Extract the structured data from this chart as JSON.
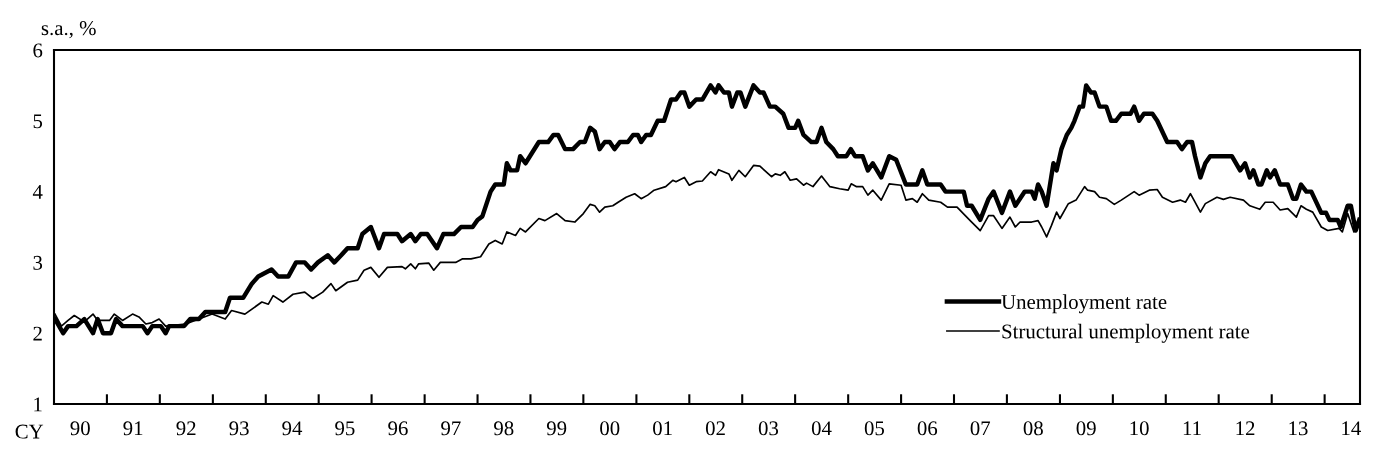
{
  "chart_data": {
    "type": "line",
    "ylabel": "s.a., %",
    "xlabel": "CY",
    "xlim": [
      "1990-01-01",
      "2014-09-02"
    ],
    "ylim": [
      1,
      6
    ],
    "yticks": [
      1,
      2,
      3,
      4,
      5,
      6
    ],
    "xticks": [
      {
        "value": "1990-07-01",
        "label": "90"
      },
      {
        "value": "1991-01-01",
        "label": null
      },
      {
        "value": "1991-07-01",
        "label": "91"
      },
      {
        "value": "1992-01-01",
        "label": null
      },
      {
        "value": "1992-07-01",
        "label": "92"
      },
      {
        "value": "1993-01-01",
        "label": null
      },
      {
        "value": "1993-07-01",
        "label": "93"
      },
      {
        "value": "1994-01-01",
        "label": null
      },
      {
        "value": "1994-07-01",
        "label": "94"
      },
      {
        "value": "1995-01-01",
        "label": null
      },
      {
        "value": "1995-07-01",
        "label": "95"
      },
      {
        "value": "1996-01-01",
        "label": null
      },
      {
        "value": "1996-07-01",
        "label": "96"
      },
      {
        "value": "1997-01-01",
        "label": null
      },
      {
        "value": "1997-07-01",
        "label": "97"
      },
      {
        "value": "1998-01-01",
        "label": null
      },
      {
        "value": "1998-07-01",
        "label": "98"
      },
      {
        "value": "1999-01-01",
        "label": null
      },
      {
        "value": "1999-07-01",
        "label": "99"
      },
      {
        "value": "2000-01-01",
        "label": null
      },
      {
        "value": "2000-07-01",
        "label": "00"
      },
      {
        "value": "2001-01-01",
        "label": null
      },
      {
        "value": "2001-07-01",
        "label": "01"
      },
      {
        "value": "2002-01-01",
        "label": null
      },
      {
        "value": "2002-07-01",
        "label": "02"
      },
      {
        "value": "2003-01-01",
        "label": null
      },
      {
        "value": "2003-07-01",
        "label": "03"
      },
      {
        "value": "2004-01-01",
        "label": null
      },
      {
        "value": "2004-07-01",
        "label": "04"
      },
      {
        "value": "2005-01-01",
        "label": null
      },
      {
        "value": "2005-07-01",
        "label": "05"
      },
      {
        "value": "2006-01-01",
        "label": null
      },
      {
        "value": "2006-07-01",
        "label": "06"
      },
      {
        "value": "2007-01-01",
        "label": null
      },
      {
        "value": "2007-07-01",
        "label": "07"
      },
      {
        "value": "2008-01-01",
        "label": null
      },
      {
        "value": "2008-07-01",
        "label": "08"
      },
      {
        "value": "2009-01-01",
        "label": null
      },
      {
        "value": "2009-07-01",
        "label": "09"
      },
      {
        "value": "2010-01-01",
        "label": null
      },
      {
        "value": "2010-07-01",
        "label": "10"
      },
      {
        "value": "2011-01-01",
        "label": null
      },
      {
        "value": "2011-07-01",
        "label": "11"
      },
      {
        "value": "2012-01-01",
        "label": null
      },
      {
        "value": "2012-07-01",
        "label": "12"
      },
      {
        "value": "2013-01-01",
        "label": null
      },
      {
        "value": "2013-07-01",
        "label": "13"
      },
      {
        "value": "2014-01-01",
        "label": null
      },
      {
        "value": "2014-07-01",
        "label": "14"
      }
    ],
    "grid": false,
    "legend": "lower right",
    "marker": "none",
    "line_style": "solid",
    "series": [
      {
        "name": "Unemployment rate",
        "color": "#000000",
        "x": [
          "1990-01-08",
          "1990-03-05",
          "1990-04-08",
          "1990-06-05",
          "1990-07-29",
          "1990-09-27",
          "1990-10-29",
          "1990-12-05",
          "1991-01-29",
          "1991-03-05",
          "1991-04-19",
          "1991-09-05",
          "1991-10-08",
          "1991-11-10",
          "1992-01-08",
          "1992-02-10",
          "1992-03-05",
          "1992-06-16",
          "1992-07-29",
          "1992-09-27",
          "1992-11-10",
          "1993-03-27",
          "1993-04-29",
          "1993-07-29",
          "1993-09-27",
          "1993-11-10",
          "1994-02-10",
          "1994-03-27",
          "1994-06-05",
          "1994-07-29",
          "1994-09-27",
          "1994-11-10",
          "1994-12-27",
          "1995-03-05",
          "1995-04-19",
          "1995-06-05",
          "1995-07-19",
          "1995-09-27",
          "1995-10-29",
          "1995-12-27",
          "1996-02-21",
          "1996-03-27",
          "1996-06-27",
          "1996-07-29",
          "1996-09-27",
          "1996-10-29",
          "1996-12-05",
          "1997-01-19",
          "1997-03-27",
          "1997-05-10",
          "1997-07-22",
          "1997-09-09",
          "1997-11-28",
          "1998-01-01",
          "1998-02-03",
          "1998-04-01",
          "1998-05-03",
          "1998-07-01",
          "1998-07-22",
          "1998-08-17",
          "1998-10-01",
          "1998-10-22",
          "1998-11-28",
          "1999-02-28",
          "1999-05-03",
          "1999-06-09",
          "1999-07-11",
          "1999-08-28",
          "1999-10-22",
          "1999-12-09",
          "2000-01-11",
          "2000-02-17",
          "2000-03-20",
          "2000-04-22",
          "2000-05-28",
          "2000-07-01",
          "2000-08-03",
          "2000-09-09",
          "2000-11-03",
          "2000-12-09",
          "2001-01-11",
          "2001-02-03",
          "2001-03-09",
          "2001-04-11",
          "2001-05-28",
          "2001-07-11",
          "2001-08-28",
          "2001-10-01",
          "2001-11-03",
          "2001-11-28",
          "2002-01-01",
          "2002-02-17",
          "2002-04-01",
          "2002-05-28",
          "2002-07-01",
          "2002-07-22",
          "2002-08-28",
          "2002-10-01",
          "2002-10-22",
          "2002-11-28",
          "2002-12-20",
          "2003-01-22",
          "2003-03-20",
          "2003-05-03",
          "2003-05-28",
          "2003-07-11",
          "2003-08-17",
          "2003-10-11",
          "2003-11-17",
          "2004-01-01",
          "2004-01-22",
          "2004-02-28",
          "2004-04-22",
          "2004-05-28",
          "2004-07-01",
          "2004-08-03",
          "2004-09-20",
          "2004-10-22",
          "2004-12-20",
          "2005-01-19",
          "2005-02-17",
          "2005-04-11",
          "2005-05-17",
          "2005-06-20",
          "2005-08-17",
          "2005-10-11",
          "2005-11-28",
          "2006-02-03",
          "2006-04-22",
          "2006-05-28",
          "2006-07-01",
          "2006-10-01",
          "2006-11-03",
          "2007-03-09",
          "2007-04-01",
          "2007-05-03",
          "2007-07-01",
          "2007-08-28",
          "2007-10-01",
          "2007-11-28",
          "2008-01-22",
          "2008-02-28",
          "2008-05-03",
          "2008-06-20",
          "2008-07-11",
          "2008-08-03",
          "2008-08-28",
          "2008-10-01",
          "2008-11-17",
          "2008-12-09",
          "2009-01-11",
          "2009-02-17",
          "2009-03-20",
          "2009-04-11",
          "2009-05-17",
          "2009-06-09",
          "2009-07-01",
          "2009-08-03",
          "2009-08-28",
          "2009-10-01",
          "2009-11-17",
          "2009-12-20",
          "2010-01-22",
          "2010-02-28",
          "2010-05-03",
          "2010-05-28",
          "2010-07-01",
          "2010-08-03",
          "2010-10-01",
          "2010-11-03",
          "2011-01-11",
          "2011-03-20",
          "2011-04-22",
          "2011-05-28",
          "2011-07-01",
          "2011-07-22",
          "2011-08-28",
          "2011-10-01",
          "2011-11-03",
          "2012-04-01",
          "2012-05-28",
          "2012-07-01",
          "2012-08-03",
          "2012-08-28",
          "2012-10-01",
          "2012-10-22",
          "2012-11-28",
          "2012-12-20",
          "2013-01-22",
          "2013-02-28",
          "2013-04-22",
          "2013-05-28",
          "2013-06-20",
          "2013-07-22",
          "2013-08-28",
          "2013-10-01",
          "2013-12-09",
          "2014-01-11",
          "2014-02-03",
          "2014-04-01",
          "2014-04-22",
          "2014-06-09",
          "2014-07-01",
          "2014-08-03",
          "2014-08-28"
        ],
        "values": [
          2.2,
          2.0,
          2.1,
          2.1,
          2.2,
          2.0,
          2.2,
          2.0,
          2.0,
          2.2,
          2.1,
          2.1,
          2.0,
          2.1,
          2.1,
          2.0,
          2.1,
          2.1,
          2.2,
          2.2,
          2.3,
          2.3,
          2.5,
          2.5,
          2.7,
          2.8,
          2.9,
          2.8,
          2.8,
          3.0,
          3.0,
          2.9,
          3.0,
          3.1,
          3.0,
          3.1,
          3.2,
          3.2,
          3.4,
          3.5,
          3.2,
          3.4,
          3.4,
          3.3,
          3.4,
          3.3,
          3.4,
          3.4,
          3.2,
          3.4,
          3.4,
          3.5,
          3.5,
          3.6,
          3.65,
          4.0,
          4.1,
          4.1,
          4.4,
          4.3,
          4.3,
          4.5,
          4.4,
          4.7,
          4.7,
          4.8,
          4.8,
          4.6,
          4.6,
          4.7,
          4.7,
          4.9,
          4.85,
          4.6,
          4.7,
          4.7,
          4.6,
          4.7,
          4.7,
          4.8,
          4.8,
          4.7,
          4.8,
          4.8,
          5.0,
          5.0,
          5.3,
          5.3,
          5.4,
          5.4,
          5.2,
          5.3,
          5.3,
          5.5,
          5.4,
          5.5,
          5.4,
          5.4,
          5.2,
          5.4,
          5.4,
          5.2,
          5.5,
          5.4,
          5.4,
          5.2,
          5.2,
          5.1,
          4.9,
          4.9,
          5.0,
          4.8,
          4.7,
          4.7,
          4.9,
          4.7,
          4.6,
          4.5,
          4.5,
          4.6,
          4.5,
          4.5,
          4.3,
          4.4,
          4.2,
          4.5,
          4.45,
          4.1,
          4.1,
          4.3,
          4.1,
          4.1,
          4.0,
          4.0,
          3.8,
          3.8,
          3.6,
          3.9,
          4.0,
          3.7,
          4.0,
          3.8,
          4.0,
          4.0,
          3.9,
          4.1,
          4.0,
          3.8,
          4.4,
          4.3,
          4.6,
          4.8,
          4.9,
          5.0,
          5.2,
          5.2,
          5.5,
          5.4,
          5.4,
          5.2,
          5.2,
          5.0,
          5.0,
          5.1,
          5.1,
          5.2,
          5.0,
          5.1,
          5.1,
          5.0,
          4.7,
          4.7,
          4.6,
          4.7,
          4.7,
          4.5,
          4.2,
          4.4,
          4.5,
          4.5,
          4.3,
          4.4,
          4.2,
          4.3,
          4.1,
          4.1,
          4.3,
          4.2,
          4.3,
          4.1,
          4.1,
          3.9,
          3.9,
          4.1,
          4.0,
          4.0,
          3.7,
          3.7,
          3.6,
          3.6,
          3.5,
          3.8,
          3.8,
          3.45,
          3.6
        ]
      },
      {
        "name": "Structural unemployment rate",
        "color": "#000000",
        "x": [
          "1990-01-08",
          "1990-02-21",
          "1990-04-08",
          "1990-05-21",
          "1990-07-29",
          "1990-09-27",
          "1990-10-29",
          "1991-01-19",
          "1991-02-21",
          "1991-04-19",
          "1991-06-27",
          "1991-08-10",
          "1991-09-27",
          "1991-11-10",
          "1991-12-27",
          "1992-02-10",
          "1992-06-27",
          "1992-09-27",
          "1992-12-27",
          "1993-03-27",
          "1993-05-10",
          "1993-08-10",
          "1993-12-05",
          "1994-01-19",
          "1994-02-21",
          "1994-04-29",
          "1994-07-08",
          "1994-09-27",
          "1994-11-21",
          "1995-01-29",
          "1995-03-27",
          "1995-04-29",
          "1995-07-19",
          "1995-09-27",
          "1995-11-10",
          "1995-12-27",
          "1996-02-21",
          "1996-04-19",
          "1996-07-29",
          "1996-08-21",
          "1996-09-27",
          "1996-10-29",
          "1996-11-21",
          "1997-01-29",
          "1997-03-05",
          "1997-04-19",
          "1997-08-03",
          "1997-09-20",
          "1997-11-17",
          "1998-01-22",
          "1998-03-20",
          "1998-05-03",
          "1998-06-20",
          "1998-07-22",
          "1998-09-20",
          "1998-10-22",
          "1998-11-28",
          "1999-02-28",
          "1999-04-11",
          "1999-07-01",
          "1999-08-28",
          "1999-11-03",
          "2000-01-01",
          "2000-02-17",
          "2000-03-20",
          "2000-04-22",
          "2000-05-28",
          "2000-07-22",
          "2000-08-28",
          "2000-10-22",
          "2000-12-20",
          "2001-02-03",
          "2001-03-20",
          "2001-05-03",
          "2001-07-22",
          "2001-09-09",
          "2001-10-01",
          "2001-11-28",
          "2002-01-01",
          "2002-02-17",
          "2002-04-01",
          "2002-05-28",
          "2002-07-01",
          "2002-07-22",
          "2002-10-01",
          "2002-10-22",
          "2002-12-09",
          "2003-01-22",
          "2003-03-20",
          "2003-05-03",
          "2003-07-22",
          "2003-08-17",
          "2003-09-20",
          "2003-10-22",
          "2003-11-28",
          "2004-01-11",
          "2004-02-28",
          "2004-03-20",
          "2004-05-03",
          "2004-07-01",
          "2004-08-28",
          "2004-11-03",
          "2005-01-01",
          "2005-01-22",
          "2005-02-28",
          "2005-04-11",
          "2005-05-17",
          "2005-06-20",
          "2005-08-17",
          "2005-10-11",
          "2006-01-01",
          "2006-02-03",
          "2006-03-20",
          "2006-04-22",
          "2006-05-28",
          "2006-07-11",
          "2006-10-01",
          "2006-11-17",
          "2007-01-22",
          "2007-03-20",
          "2007-05-03",
          "2007-07-01",
          "2007-08-28",
          "2007-10-01",
          "2007-11-28",
          "2008-01-22",
          "2008-02-28",
          "2008-04-01",
          "2008-06-20",
          "2008-08-03",
          "2008-08-28",
          "2008-10-01",
          "2008-11-03",
          "2008-12-09",
          "2009-01-01",
          "2009-02-28",
          "2009-04-22",
          "2009-06-20",
          "2009-07-11",
          "2009-08-28",
          "2009-10-01",
          "2009-11-17",
          "2010-01-11",
          "2010-02-28",
          "2010-05-28",
          "2010-07-01",
          "2010-09-09",
          "2010-11-03",
          "2010-12-09",
          "2011-02-17",
          "2011-04-11",
          "2011-05-17",
          "2011-06-20",
          "2011-07-22",
          "2011-08-28",
          "2011-10-01",
          "2011-12-20",
          "2012-02-03",
          "2012-03-20",
          "2012-06-20",
          "2012-08-03",
          "2012-10-11",
          "2012-11-17",
          "2013-01-11",
          "2013-02-28",
          "2013-04-22",
          "2013-06-20",
          "2013-07-22",
          "2013-08-28",
          "2013-10-11",
          "2013-12-09",
          "2014-01-22",
          "2014-04-11",
          "2014-05-03",
          "2014-06-09",
          "2014-07-22",
          "2014-08-28"
        ],
        "values": [
          2.27,
          2.1,
          2.18,
          2.25,
          2.16,
          2.27,
          2.18,
          2.18,
          2.27,
          2.18,
          2.27,
          2.23,
          2.13,
          2.15,
          2.2,
          2.1,
          2.13,
          2.2,
          2.27,
          2.2,
          2.32,
          2.27,
          2.44,
          2.41,
          2.53,
          2.44,
          2.55,
          2.58,
          2.49,
          2.58,
          2.7,
          2.6,
          2.72,
          2.75,
          2.89,
          2.93,
          2.79,
          2.93,
          2.94,
          2.91,
          2.98,
          2.91,
          2.98,
          2.99,
          2.89,
          3.0,
          3.0,
          3.05,
          3.05,
          3.08,
          3.26,
          3.31,
          3.26,
          3.43,
          3.38,
          3.48,
          3.43,
          3.62,
          3.59,
          3.69,
          3.59,
          3.57,
          3.69,
          3.82,
          3.8,
          3.71,
          3.78,
          3.8,
          3.85,
          3.92,
          3.97,
          3.9,
          3.95,
          4.02,
          4.07,
          4.16,
          4.14,
          4.2,
          4.09,
          4.14,
          4.15,
          4.28,
          4.23,
          4.31,
          4.25,
          4.16,
          4.3,
          4.21,
          4.37,
          4.36,
          4.21,
          4.25,
          4.23,
          4.28,
          4.16,
          4.18,
          4.09,
          4.12,
          4.07,
          4.22,
          4.07,
          4.04,
          4.02,
          4.11,
          4.07,
          4.07,
          3.95,
          4.02,
          3.88,
          4.11,
          4.09,
          3.88,
          3.9,
          3.85,
          3.97,
          3.88,
          3.85,
          3.78,
          3.78,
          3.66,
          3.57,
          3.45,
          3.66,
          3.66,
          3.48,
          3.64,
          3.5,
          3.57,
          3.57,
          3.59,
          3.5,
          3.36,
          3.52,
          3.71,
          3.62,
          3.83,
          3.88,
          4.07,
          4.02,
          4.0,
          3.92,
          3.9,
          3.82,
          3.88,
          4.0,
          3.95,
          4.02,
          4.03,
          3.92,
          3.85,
          3.88,
          3.85,
          3.97,
          3.85,
          3.71,
          3.83,
          3.92,
          3.89,
          3.92,
          3.88,
          3.8,
          3.75,
          3.85,
          3.85,
          3.74,
          3.76,
          3.64,
          3.8,
          3.75,
          3.71,
          3.5,
          3.45,
          3.48,
          3.43,
          3.69,
          3.43,
          3.57
        ]
      }
    ]
  }
}
